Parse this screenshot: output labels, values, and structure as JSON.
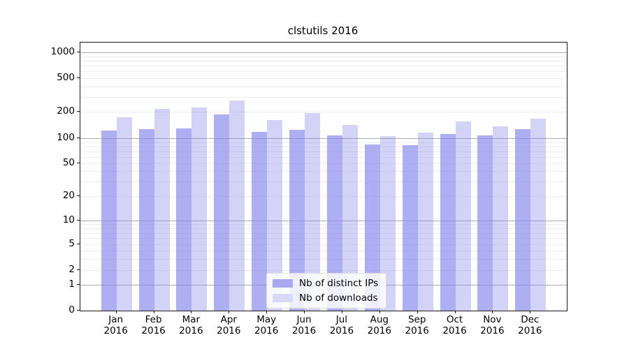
{
  "title": "clstutils 2016",
  "chart_data": {
    "type": "bar",
    "title": "clstutils 2016",
    "categories": [
      "Jan",
      "Feb",
      "Mar",
      "Apr",
      "May",
      "Jun",
      "Jul",
      "Aug",
      "Sep",
      "Oct",
      "Nov",
      "Dec"
    ],
    "category_year_line": "2016",
    "series": [
      {
        "name": "Nb of distinct IPs",
        "color": "#a9a9f0",
        "values": [
          122,
          127,
          130,
          187,
          119,
          125,
          108,
          84,
          83,
          112,
          108,
          127
        ]
      },
      {
        "name": "Nb of downloads",
        "color": "#d9d9f8",
        "values": [
          174,
          215,
          226,
          273,
          161,
          194,
          141,
          106,
          115,
          154,
          136,
          166
        ]
      }
    ],
    "yscale": "log-like with zero baseline",
    "yticks": [
      0,
      1,
      2,
      5,
      10,
      20,
      50,
      100,
      200,
      500,
      1000
    ],
    "ylim": [
      0,
      1000
    ],
    "grid": "horizontal gridlines: darker at powers of 10, faint log minors (2-9 per decade)",
    "legend_position": "lower center",
    "colors": {
      "bar_distinct_ips": "#a9a9f0",
      "bar_downloads": "#d9d9f8",
      "major_grid": "#ababab",
      "minor_grid": "#ececec",
      "axis": "#1a1a1a"
    }
  }
}
